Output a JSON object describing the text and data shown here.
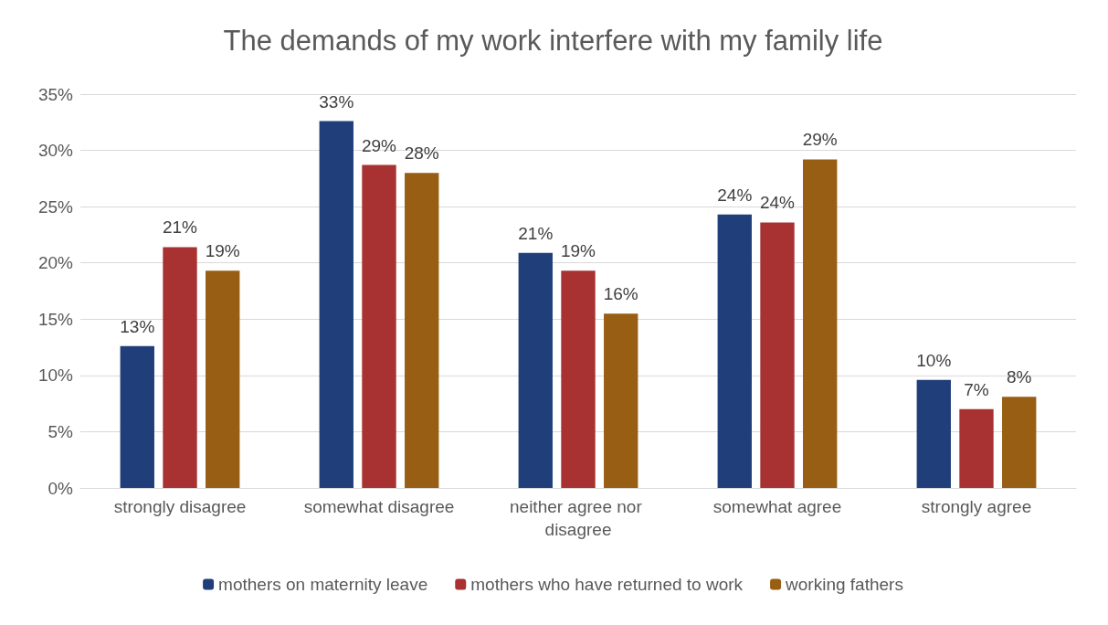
{
  "chart_data": {
    "type": "bar",
    "title": "The demands of my work interfere with my family life",
    "categories": [
      "strongly disagree",
      "somewhat disagree",
      "neither agree nor disagree",
      "somewhat agree",
      "strongly agree"
    ],
    "series": [
      {
        "name": "mothers on maternity leave",
        "color": "#203f7a",
        "values": [
          12.6,
          32.6,
          20.9,
          24.3,
          9.6
        ],
        "value_labels": [
          "13%",
          "33%",
          "21%",
          "24%",
          "10%"
        ]
      },
      {
        "name": "mothers who have returned to work",
        "color": "#a83232",
        "values": [
          21.4,
          28.7,
          19.3,
          23.6,
          7.0
        ],
        "value_labels": [
          "21%",
          "29%",
          "19%",
          "24%",
          "7%"
        ]
      },
      {
        "name": "working fathers",
        "color": "#985f14",
        "values": [
          19.3,
          28.0,
          15.5,
          29.2,
          8.1
        ],
        "value_labels": [
          "19%",
          "28%",
          "16%",
          "29%",
          "8%"
        ]
      }
    ],
    "ylim": [
      0,
      35
    ],
    "yticks": [
      {
        "value": 0,
        "label": "0%"
      },
      {
        "value": 5,
        "label": "5%"
      },
      {
        "value": 10,
        "label": "10%"
      },
      {
        "value": 15,
        "label": "15%"
      },
      {
        "value": 20,
        "label": "20%"
      },
      {
        "value": 25,
        "label": "25%"
      },
      {
        "value": 30,
        "label": "30%"
      },
      {
        "value": 35,
        "label": "35%"
      }
    ],
    "grid": "y",
    "legend": "bottom"
  }
}
